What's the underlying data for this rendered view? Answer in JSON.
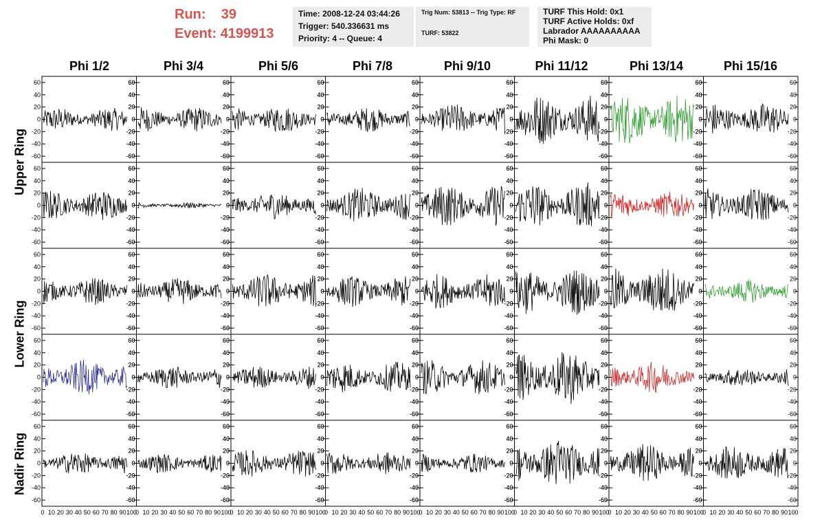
{
  "header": {
    "run_label": "Run:",
    "run_value": "39",
    "event_label": "Event:",
    "event_value": "4199913"
  },
  "info_box_1": {
    "time": "Time: 2008-12-24 03:44:26",
    "trigger": "Trigger: 540.336631 ms",
    "priority": "Priority: 4 -- Queue: 4"
  },
  "info_box_2": {
    "trig": "Trig Num: 53813 -- Trig Type: RF",
    "turf": "TURF: 53822"
  },
  "info_box_3": {
    "hold": "TURF This Hold: 0x1",
    "active": "TURF Active Holds: 0xf",
    "labrador": "Labrador AAAAAAAAAA",
    "phimask": "Phi Mask: 0"
  },
  "chart_data": {
    "type": "line",
    "columns": [
      "Phi 1/2",
      "Phi 3/4",
      "Phi 5/6",
      "Phi 7/8",
      "Phi 9/10",
      "Phi 11/12",
      "Phi 13/14",
      "Phi 15/16"
    ],
    "rings": [
      "Upper Ring",
      "Lower Ring",
      "Nadir Ring"
    ],
    "xlim": [
      0,
      100
    ],
    "ylim": [
      -70,
      70
    ],
    "y_ticks": [
      -60,
      -40,
      -20,
      0,
      20,
      40,
      60
    ],
    "x_ticks": [
      "0",
      "10",
      "20",
      "30",
      "40",
      "50",
      "60",
      "70",
      "80",
      "90",
      "100"
    ],
    "grid": false,
    "colors": {
      "trace": "#000000",
      "green": "#2e9e2e",
      "red": "#d42020",
      "blue": "#2a2a9a"
    },
    "rows": [
      {
        "amps": [
          12,
          13,
          14,
          13,
          16,
          26,
          26,
          17
        ],
        "colors": [
          "black",
          "black",
          "black",
          "black",
          "black",
          "black",
          "green",
          "black"
        ]
      },
      {
        "amps": [
          16,
          3,
          14,
          18,
          22,
          24,
          14,
          18
        ],
        "colors": [
          "black",
          "black",
          "black",
          "black",
          "black",
          "black",
          "red",
          "black"
        ]
      },
      {
        "amps": [
          14,
          14,
          18,
          16,
          18,
          24,
          26,
          12
        ],
        "colors": [
          "black",
          "black",
          "black",
          "black",
          "black",
          "black",
          "black",
          "green"
        ]
      },
      {
        "amps": [
          18,
          12,
          12,
          16,
          18,
          28,
          16,
          10
        ],
        "colors": [
          "blue",
          "black",
          "black",
          "black",
          "black",
          "black",
          "red",
          "black"
        ]
      },
      {
        "amps": [
          12,
          10,
          14,
          12,
          10,
          26,
          20,
          18
        ],
        "colors": [
          "black",
          "black",
          "black",
          "black",
          "black",
          "black",
          "black",
          "black"
        ]
      }
    ]
  }
}
